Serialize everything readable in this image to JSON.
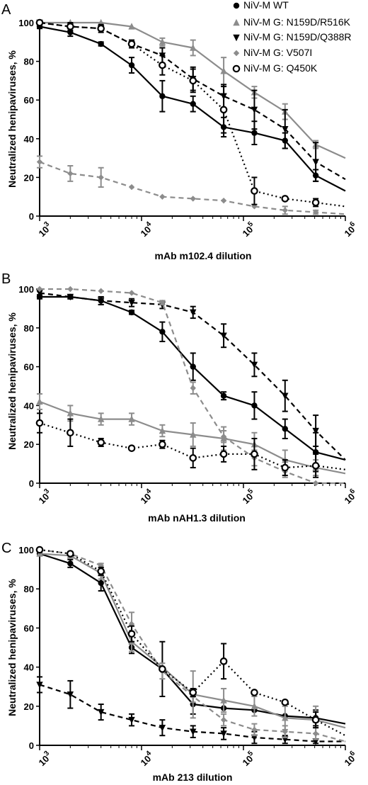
{
  "colors": {
    "black": "#000000",
    "gray": "#8c8c8c"
  },
  "legend": [
    {
      "label": "NiV-M WT",
      "color": "#000000",
      "marker": "circle",
      "dash": "solid"
    },
    {
      "label": "NiV-M G: N159D/R516K",
      "color": "#8c8c8c",
      "marker": "triangle-up",
      "dash": "solid"
    },
    {
      "label": "NiV-M G: N159D/Q388R",
      "color": "#000000",
      "marker": "triangle-down",
      "dash": "dashed"
    },
    {
      "label": "NiV-M G: V507I",
      "color": "#8c8c8c",
      "marker": "diamond",
      "dash": "dashed"
    },
    {
      "label": "NiV-M G: Q450K",
      "color": "#000000",
      "marker": "open-circle",
      "dash": "dotted"
    }
  ],
  "chart_data": [
    {
      "type": "line",
      "panel": "A",
      "xlabel": "mAb m102.4 dilution",
      "ylabel": "Neutralized henipaviruses, %",
      "xscale": "log",
      "xlim": [
        1000,
        1000000
      ],
      "ylim": [
        0,
        100
      ],
      "yticks": [
        0,
        20,
        40,
        60,
        80,
        100
      ],
      "xticks": [
        {
          "base": "10",
          "exp": "3"
        },
        {
          "base": "10",
          "exp": "4"
        },
        {
          "base": "10",
          "exp": "5"
        },
        {
          "base": "10",
          "exp": "6"
        }
      ],
      "grid": false,
      "series": [
        {
          "name": "NiV-M WT",
          "x": [
            1000,
            2000,
            4000,
            8000,
            16000,
            32000,
            64000,
            128000,
            256000,
            512000,
            1000000
          ],
          "y": [
            98,
            95,
            89,
            78,
            62,
            58,
            46,
            43,
            39,
            21,
            13
          ],
          "err": [
            1,
            2,
            1,
            4,
            8,
            4,
            5,
            6,
            4,
            3,
            0
          ],
          "markers_last": false
        },
        {
          "name": "NiV-M G: N159D/R516K",
          "x": [
            1000,
            2000,
            4000,
            8000,
            16000,
            32000,
            64000,
            128000,
            256000,
            512000,
            1000000
          ],
          "y": [
            100,
            100,
            100,
            98,
            90,
            87,
            75,
            64,
            54,
            37,
            30
          ],
          "err": [
            1,
            0,
            0,
            0,
            2,
            4,
            7,
            3,
            4,
            2,
            0
          ],
          "markers_last": false
        },
        {
          "name": "NiV-M G: N159D/Q388R",
          "x": [
            1000,
            2000,
            4000,
            8000,
            16000,
            32000,
            64000,
            128000,
            256000,
            512000,
            1000000
          ],
          "y": [
            100,
            98,
            97,
            89,
            83,
            71,
            62,
            55,
            45,
            28,
            19
          ],
          "err": [
            1,
            2,
            2,
            2,
            4,
            6,
            6,
            10,
            10,
            10,
            0
          ],
          "markers_last": false
        },
        {
          "name": "NiV-M G: V507I",
          "x": [
            1000,
            2000,
            4000,
            8000,
            16000,
            32000,
            64000,
            128000,
            256000,
            512000,
            1000000
          ],
          "y": [
            28,
            22,
            20,
            15,
            10,
            9,
            8,
            5,
            3,
            2,
            1
          ],
          "err": [
            3,
            4,
            5,
            0,
            0,
            0,
            0,
            0,
            2,
            1,
            0
          ],
          "markers_last": false
        },
        {
          "name": "NiV-M G: Q450K",
          "x": [
            1000,
            2000,
            4000,
            8000,
            16000,
            32000,
            64000,
            128000,
            256000,
            512000,
            1000000
          ],
          "y": [
            100,
            98,
            97,
            89,
            78,
            70,
            55,
            13,
            9,
            7,
            5
          ],
          "err": [
            1,
            1,
            1,
            1,
            5,
            6,
            12,
            7,
            1,
            2,
            0
          ],
          "markers_last": false
        }
      ]
    },
    {
      "type": "line",
      "panel": "B",
      "xlabel": "mAb nAH1.3 dilution",
      "ylabel": "Neutralized henipaviruses, %",
      "xscale": "log",
      "xlim": [
        1000,
        1000000
      ],
      "ylim": [
        0,
        100
      ],
      "yticks": [
        0,
        20,
        40,
        60,
        80,
        100
      ],
      "xticks": [
        {
          "base": "10",
          "exp": "3"
        },
        {
          "base": "10",
          "exp": "4"
        },
        {
          "base": "10",
          "exp": "5"
        },
        {
          "base": "10",
          "exp": "6"
        }
      ],
      "grid": false,
      "series": [
        {
          "name": "NiV-M WT",
          "x": [
            1000,
            2000,
            4000,
            8000,
            16000,
            32000,
            64000,
            128000,
            256000,
            512000,
            1000000
          ],
          "y": [
            96,
            96,
            94,
            88,
            78,
            60,
            45,
            40,
            28,
            16,
            12
          ],
          "err": [
            1,
            1,
            2,
            1,
            5,
            7,
            2,
            7,
            5,
            10,
            0
          ],
          "markers_last": false
        },
        {
          "name": "NiV-M G: N159D/R516K",
          "x": [
            1000,
            2000,
            4000,
            8000,
            16000,
            32000,
            64000,
            128000,
            256000,
            512000,
            1000000
          ],
          "y": [
            42,
            36,
            33,
            33,
            27,
            25,
            23,
            20,
            12,
            8,
            5
          ],
          "err": [
            4,
            4,
            3,
            3,
            3,
            6,
            6,
            6,
            5,
            4,
            0
          ],
          "markers_last": false
        },
        {
          "name": "NiV-M G: N159D/Q388R",
          "x": [
            1000,
            2000,
            4000,
            8000,
            16000,
            32000,
            64000,
            128000,
            256000,
            512000,
            1000000
          ],
          "y": [
            98,
            96,
            94,
            93,
            92,
            88,
            76,
            61,
            45,
            27,
            12
          ],
          "err": [
            1,
            1,
            2,
            2,
            2,
            3,
            6,
            6,
            8,
            8,
            0
          ],
          "markers_last": false
        },
        {
          "name": "NiV-M G: V507I",
          "x": [
            1000,
            2000,
            4000,
            8000,
            16000,
            32000,
            64000,
            128000,
            256000,
            512000,
            1000000
          ],
          "y": [
            100,
            100,
            99,
            98,
            93,
            49,
            24,
            13,
            6,
            0,
            0
          ],
          "err": [
            0,
            0,
            0,
            0,
            1,
            3,
            3,
            4,
            3,
            0,
            0
          ],
          "markers_last": false
        },
        {
          "name": "NiV-M G: Q450K",
          "x": [
            1000,
            2000,
            4000,
            8000,
            16000,
            32000,
            64000,
            128000,
            256000,
            512000,
            1000000
          ],
          "y": [
            31,
            26,
            21,
            18,
            20,
            13,
            15,
            15,
            8,
            9,
            7
          ],
          "err": [
            5,
            7,
            2,
            0,
            2,
            5,
            4,
            8,
            4,
            6,
            0
          ],
          "markers_last": false
        }
      ]
    },
    {
      "type": "line",
      "panel": "C",
      "xlabel": "mAb 213 dilution",
      "ylabel": "Neutralized henipaviruses, %",
      "xscale": "log",
      "xlim": [
        1000,
        1000000
      ],
      "ylim": [
        0,
        100
      ],
      "yticks": [
        0,
        20,
        40,
        60,
        80,
        100
      ],
      "xticks": [
        {
          "base": "10",
          "exp": "3"
        },
        {
          "base": "10",
          "exp": "4"
        },
        {
          "base": "10",
          "exp": "5"
        },
        {
          "base": "10",
          "exp": "6"
        }
      ],
      "grid": false,
      "series": [
        {
          "name": "NiV-M WT",
          "x": [
            1000,
            2000,
            4000,
            8000,
            16000,
            32000,
            64000,
            128000,
            256000,
            512000,
            1000000
          ],
          "y": [
            98,
            93,
            83,
            50,
            39,
            21,
            19,
            18,
            15,
            14,
            11
          ],
          "err": [
            1,
            2,
            4,
            3,
            14,
            5,
            0,
            0,
            0,
            4,
            0
          ],
          "markers_last": false
        },
        {
          "name": "NiV-M G: N159D/R516K",
          "x": [
            1000,
            2000,
            4000,
            8000,
            16000,
            32000,
            64000,
            128000,
            256000,
            512000,
            1000000
          ],
          "y": [
            98,
            97,
            88,
            53,
            40,
            26,
            23,
            20,
            14,
            13,
            9
          ],
          "err": [
            1,
            1,
            3,
            5,
            0,
            12,
            6,
            5,
            6,
            7,
            0
          ],
          "markers_last": false
        },
        {
          "name": "NiV-M G: N159D/Q388R",
          "x": [
            1000,
            2000,
            4000,
            8000,
            16000,
            32000,
            64000,
            128000,
            256000,
            512000,
            1000000
          ],
          "y": [
            31,
            26,
            17,
            13,
            9,
            7,
            6,
            4,
            3,
            2,
            2
          ],
          "err": [
            4,
            7,
            4,
            3,
            4,
            3,
            3,
            3,
            2,
            1,
            0
          ],
          "markers_last": false
        },
        {
          "name": "NiV-M G: V507I",
          "x": [
            1000,
            2000,
            4000,
            8000,
            16000,
            32000,
            64000,
            128000,
            256000,
            512000,
            1000000
          ],
          "y": [
            100,
            98,
            92,
            62,
            38,
            25,
            13,
            8,
            7,
            6,
            2
          ],
          "err": [
            0,
            1,
            1,
            6,
            4,
            3,
            3,
            3,
            3,
            3,
            0
          ],
          "markers_last": false
        },
        {
          "name": "NiV-M G: Q450K",
          "x": [
            1000,
            2000,
            4000,
            8000,
            16000,
            32000,
            64000,
            128000,
            256000,
            512000,
            1000000
          ],
          "y": [
            100,
            98,
            89,
            57,
            39,
            27,
            43,
            27,
            22,
            13,
            5
          ],
          "err": [
            0,
            1,
            2,
            4,
            0,
            2,
            9,
            1,
            0,
            4,
            0
          ],
          "markers_last": false
        }
      ]
    }
  ]
}
